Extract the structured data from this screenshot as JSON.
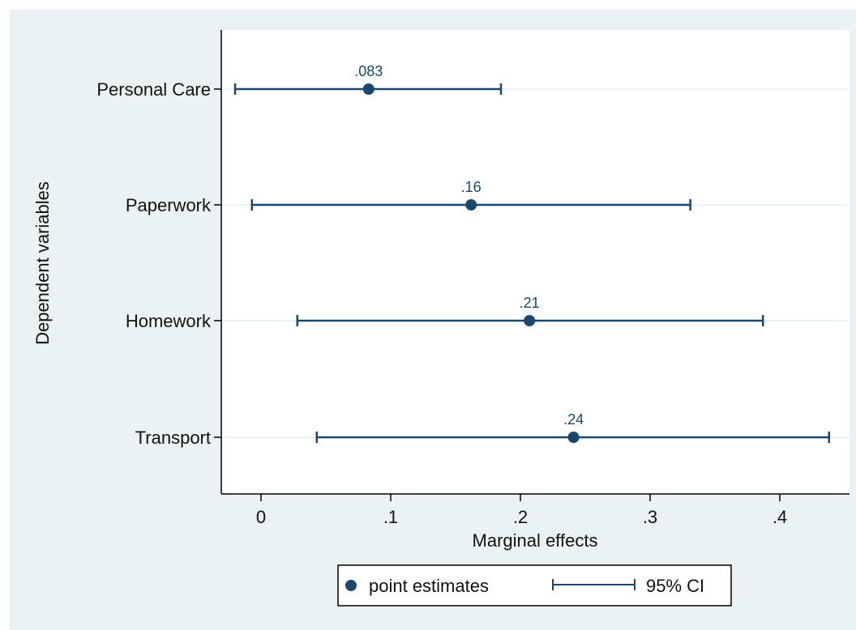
{
  "chart_data": {
    "type": "scatter",
    "subtype": "coefficient-plot",
    "xlabel": "Marginal effects",
    "ylabel": "Dependent variables",
    "xlim": [
      -0.03,
      0.455
    ],
    "x_ticks": [
      0,
      0.1,
      0.2,
      0.3,
      0.4
    ],
    "x_tick_labels": [
      "0",
      ".1",
      ".2",
      ".3",
      ".4"
    ],
    "categories": [
      "Personal Care",
      "Paperwork",
      "Homework",
      "Transport"
    ],
    "series": [
      {
        "name": "point estimates",
        "values": [
          0.083,
          0.162,
          0.207,
          0.241
        ],
        "labels": [
          ".083",
          ".16",
          ".21",
          ".24"
        ]
      },
      {
        "name": "95% CI",
        "lower": [
          -0.02,
          -0.007,
          0.028,
          0.043
        ],
        "upper": [
          0.185,
          0.331,
          0.387,
          0.438
        ]
      }
    ],
    "grid": "horizontal",
    "legend_position": "bottom",
    "colors": {
      "series": "#1a476f",
      "background": "#eaf2f3",
      "plot_background": "#ffffff",
      "grid": "#eaf2f3"
    }
  }
}
